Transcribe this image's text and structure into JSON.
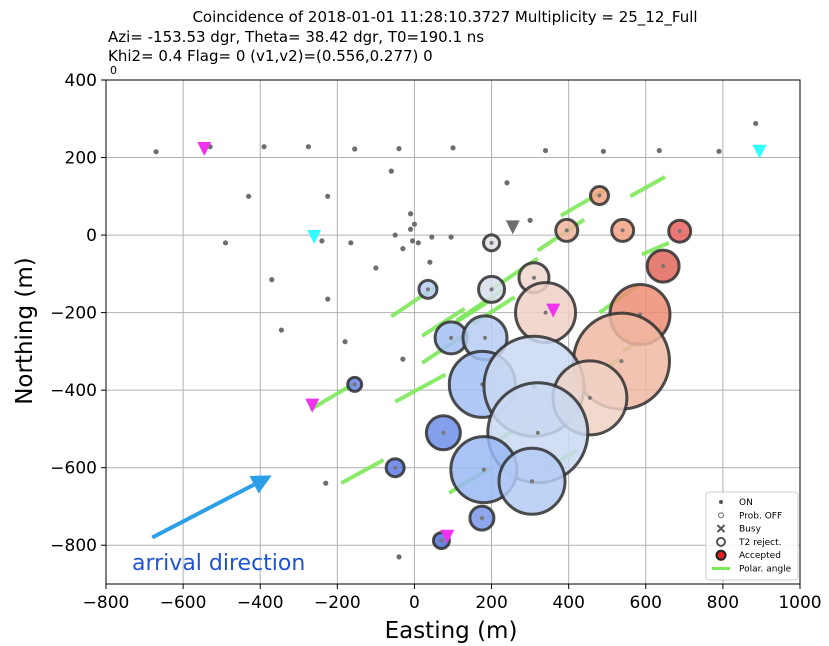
{
  "chart_data": {
    "type": "scatter",
    "title_lines": [
      "Coincidence of 2018-01-01 11:28:10.3727 Multiplicity = 25_12_Full",
      "Azi= -153.53 dgr, Theta=  38.42 dgr, T0=190.1 ns",
      "Khi2=   0.4 Flag=  0 (v1,v2)=(0.556,0.277) 0"
    ],
    "corner_label": "0",
    "xlabel": "Easting (m)",
    "ylabel": "Northing (m)",
    "xlim": [
      -800,
      1000
    ],
    "ylim": [
      -900,
      400
    ],
    "xticks": [
      -800,
      -600,
      -400,
      -200,
      0,
      200,
      400,
      600,
      800,
      1000
    ],
    "yticks": [
      -800,
      -600,
      -400,
      -200,
      0,
      200,
      400
    ],
    "grid": true,
    "legend_position": "bottom-right",
    "legend": [
      "ON",
      "Prob. OFF",
      "Busy",
      "T2 reject.",
      "Accepted",
      "Polar. angle"
    ],
    "colors": {
      "on_dot": "#6e6e6e",
      "polar_line": "#7ee85a",
      "accepted_marker": "#e02020",
      "arrow": "#2b9fe8",
      "annotation_text": "#1f54d6",
      "magenta_marker": "#f032f0",
      "cyan_marker": "#32ffff",
      "gray_marker": "#6e6e6e"
    },
    "annotation": {
      "text": "arrival direction",
      "arrow_from": [
        -680,
        -780
      ],
      "arrow_to": [
        -370,
        -620
      ]
    },
    "on_stations": [
      [
        -670,
        215
      ],
      [
        -530,
        228
      ],
      [
        -390,
        228
      ],
      [
        -275,
        228
      ],
      [
        -155,
        222
      ],
      [
        -40,
        223
      ],
      [
        100,
        225
      ],
      [
        340,
        218
      ],
      [
        490,
        216
      ],
      [
        635,
        218
      ],
      [
        790,
        216
      ],
      [
        885,
        288
      ],
      [
        -430,
        100
      ],
      [
        -225,
        100
      ],
      [
        -60,
        165
      ],
      [
        -10,
        55
      ],
      [
        0,
        28
      ],
      [
        -10,
        15
      ],
      [
        -490,
        -20
      ],
      [
        -370,
        -115
      ],
      [
        -240,
        -15
      ],
      [
        -165,
        -20
      ],
      [
        -100,
        -85
      ],
      [
        -50,
        0
      ],
      [
        -30,
        -35
      ],
      [
        -5,
        -15
      ],
      [
        45,
        -5
      ],
      [
        95,
        -5
      ],
      [
        40,
        -70
      ],
      [
        10,
        -20
      ],
      [
        240,
        135
      ],
      [
        300,
        38
      ],
      [
        -345,
        -245
      ],
      [
        -225,
        -165
      ],
      [
        -180,
        -275
      ],
      [
        -30,
        -320
      ],
      [
        -230,
        -640
      ],
      [
        -40,
        -830
      ]
    ],
    "triangles_magenta": [
      [
        -545,
        222
      ],
      [
        -265,
        -440
      ],
      [
        360,
        -195
      ],
      [
        85,
        -778
      ]
    ],
    "triangles_cyan": [
      [
        -260,
        -5
      ],
      [
        895,
        215
      ]
    ],
    "triangles_gray": [
      [
        255,
        20
      ]
    ],
    "polar_lines": [
      [
        [
          380,
          50
        ],
        [
          500,
          120
        ]
      ],
      [
        [
          320,
          -40
        ],
        [
          440,
          40
        ]
      ],
      [
        [
          200,
          -140
        ],
        [
          320,
          -60
        ]
      ],
      [
        [
          -60,
          -210
        ],
        [
          60,
          -130
        ]
      ],
      [
        [
          110,
          -220
        ],
        [
          230,
          -140
        ]
      ],
      [
        [
          20,
          -330
        ],
        [
          140,
          -250
        ]
      ],
      [
        [
          -50,
          -430
        ],
        [
          80,
          -360
        ]
      ],
      [
        [
          -270,
          -450
        ],
        [
          -160,
          -385
        ]
      ],
      [
        [
          480,
          -200
        ],
        [
          580,
          -130
        ]
      ],
      [
        [
          590,
          -50
        ],
        [
          660,
          -20
        ]
      ],
      [
        [
          540,
          -300
        ],
        [
          640,
          -240
        ]
      ],
      [
        [
          200,
          -540
        ],
        [
          310,
          -470
        ]
      ],
      [
        [
          430,
          -390
        ],
        [
          530,
          -320
        ]
      ],
      [
        [
          -190,
          -640
        ],
        [
          -80,
          -580
        ]
      ],
      [
        [
          90,
          -665
        ],
        [
          200,
          -600
        ]
      ],
      [
        [
          310,
          -625
        ],
        [
          420,
          -555
        ]
      ],
      [
        [
          100,
          -230
        ],
        [
          210,
          -160
        ]
      ],
      [
        [
          150,
          -230
        ],
        [
          260,
          -160
        ]
      ],
      [
        [
          560,
          100
        ],
        [
          650,
          150
        ]
      ],
      [
        [
          20,
          -260
        ],
        [
          130,
          -190
        ]
      ]
    ],
    "accepted_stations": [
      {
        "x": 480,
        "y": 102,
        "r": 9,
        "color": "#f3a283"
      },
      {
        "x": 395,
        "y": 12,
        "r": 11,
        "color": "#f0b59e"
      },
      {
        "x": 540,
        "y": 12,
        "r": 11,
        "color": "#f3a283"
      },
      {
        "x": 688,
        "y": 10,
        "r": 11,
        "color": "#e7625e"
      },
      {
        "x": 645,
        "y": -80,
        "r": 16,
        "color": "#e0695c"
      },
      {
        "x": 200,
        "y": -20,
        "r": 8,
        "color": "#dfe2e8"
      },
      {
        "x": 310,
        "y": -110,
        "r": 15,
        "color": "#efd7ce"
      },
      {
        "x": 200,
        "y": -140,
        "r": 13,
        "color": "#d8dfec"
      },
      {
        "x": 35,
        "y": -140,
        "r": 9,
        "color": "#b6ccf5"
      },
      {
        "x": 340,
        "y": -200,
        "r": 30,
        "color": "#eed0c4"
      },
      {
        "x": 585,
        "y": -205,
        "r": 30,
        "color": "#ec8d74"
      },
      {
        "x": 95,
        "y": -265,
        "r": 16,
        "color": "#a5c0f4"
      },
      {
        "x": 183,
        "y": -265,
        "r": 22,
        "color": "#b6cdf5"
      },
      {
        "x": 537,
        "y": -325,
        "r": 48,
        "color": "#f1b8a3"
      },
      {
        "x": 176,
        "y": -385,
        "r": 33,
        "color": "#a3bff4"
      },
      {
        "x": 310,
        "y": -390,
        "r": 50,
        "color": "#c9d8f1"
      },
      {
        "x": 455,
        "y": -420,
        "r": 37,
        "color": "#f0d2c6"
      },
      {
        "x": 320,
        "y": -510,
        "r": 50,
        "color": "#c9d8f1"
      },
      {
        "x": -155,
        "y": -385,
        "r": 7,
        "color": "#6685e8"
      },
      {
        "x": 75,
        "y": -510,
        "r": 17,
        "color": "#6e8fe6"
      },
      {
        "x": 180,
        "y": -605,
        "r": 33,
        "color": "#9ab8f4"
      },
      {
        "x": 305,
        "y": -635,
        "r": 33,
        "color": "#b4cbf5"
      },
      {
        "x": -50,
        "y": -600,
        "r": 9,
        "color": "#5e7be6"
      },
      {
        "x": 175,
        "y": -730,
        "r": 12,
        "color": "#7a98e9"
      },
      {
        "x": 70,
        "y": -788,
        "r": 8,
        "color": "#5571df"
      }
    ]
  }
}
